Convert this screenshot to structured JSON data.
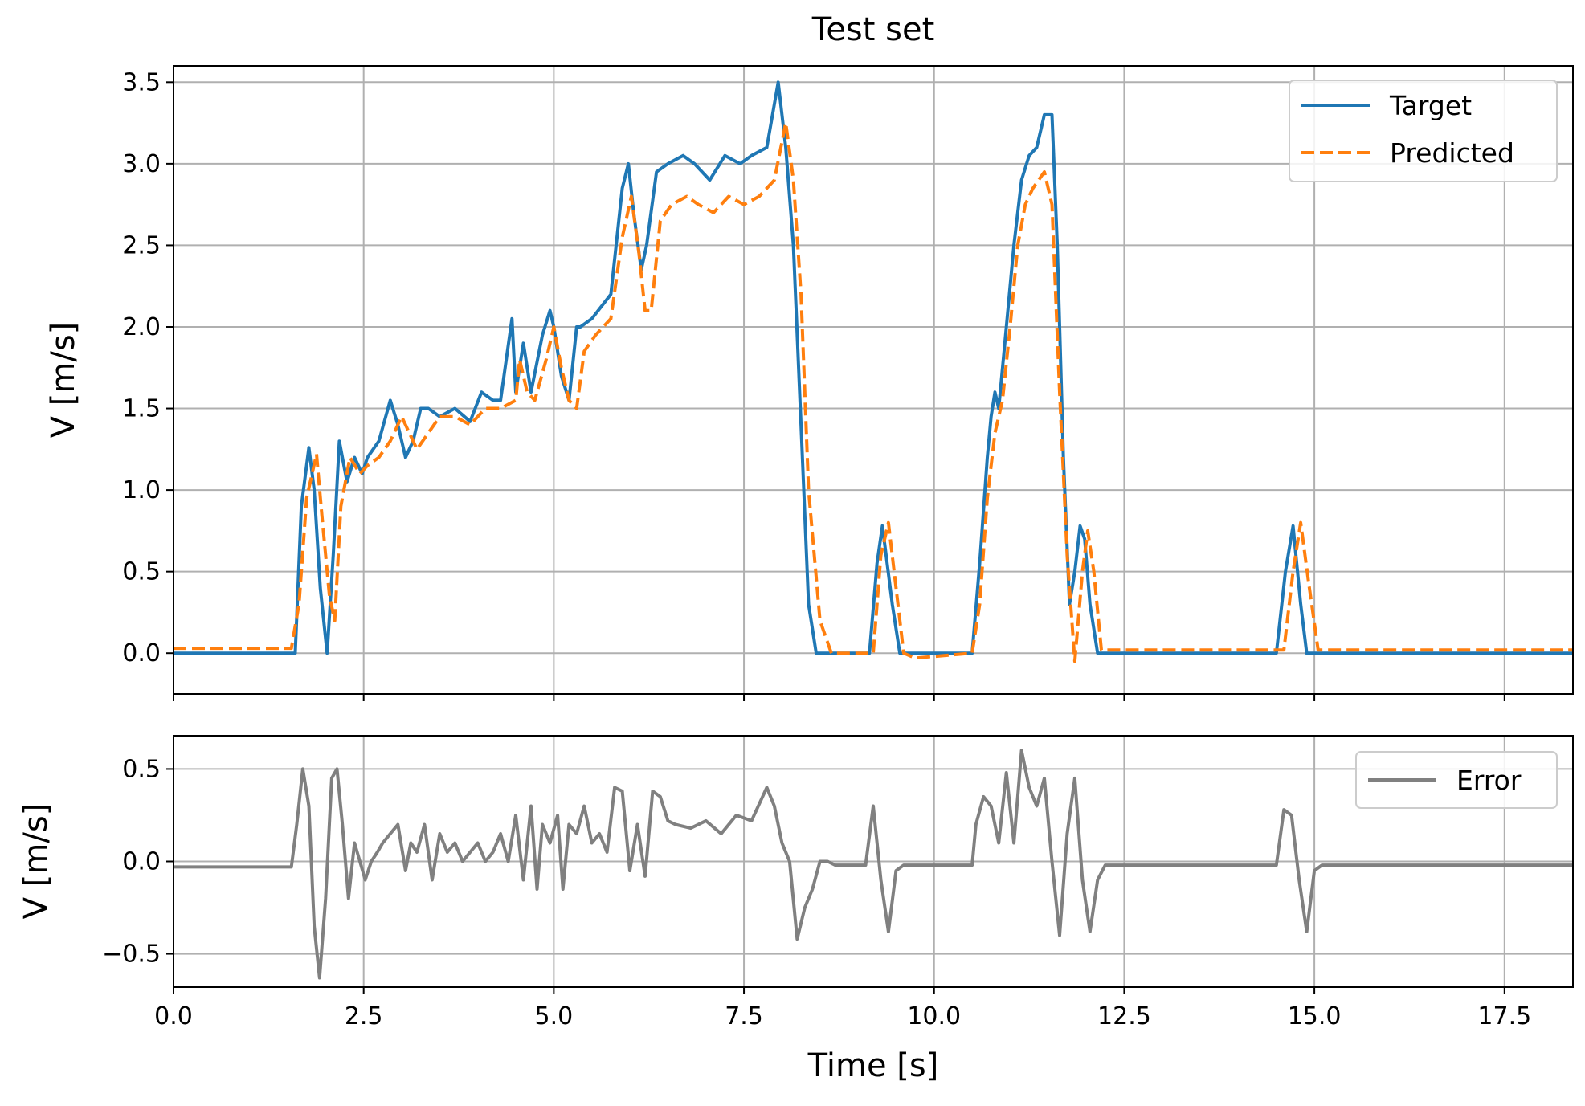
{
  "figure": {
    "title": "Test set"
  },
  "chart_data": [
    {
      "type": "line",
      "title": "Test set",
      "xlabel": "",
      "ylabel": "V [m/s]",
      "xlim": [
        0,
        18.4
      ],
      "ylim": [
        -0.25,
        3.6
      ],
      "grid": true,
      "legend_position": "top-right",
      "yticks": [
        "0.0",
        "0.5",
        "1.0",
        "1.5",
        "2.0",
        "2.5",
        "3.0",
        "3.5"
      ],
      "ytick_values": [
        0,
        0.5,
        1.0,
        1.5,
        2.0,
        2.5,
        3.0,
        3.5
      ],
      "xtick_values": [
        0,
        2.5,
        5,
        7.5,
        10,
        12.5,
        15,
        17.5
      ],
      "series": [
        {
          "name": "Target",
          "color": "#1f77b4",
          "dash": "solid",
          "x": [
            0,
            1.6,
            1.68,
            1.78,
            1.85,
            1.93,
            2.02,
            2.1,
            2.18,
            2.28,
            2.38,
            2.48,
            2.55,
            2.7,
            2.85,
            2.95,
            3.05,
            3.15,
            3.25,
            3.35,
            3.5,
            3.7,
            3.9,
            4.05,
            4.2,
            4.3,
            4.45,
            4.5,
            4.6,
            4.7,
            4.85,
            4.95,
            5.0,
            5.1,
            5.2,
            5.3,
            5.35,
            5.5,
            5.75,
            5.9,
            5.98,
            6.05,
            6.15,
            6.22,
            6.35,
            6.5,
            6.7,
            6.85,
            7.05,
            7.25,
            7.45,
            7.6,
            7.8,
            7.95,
            8.05,
            8.15,
            8.25,
            8.35,
            8.45,
            9.15,
            9.25,
            9.32,
            9.45,
            9.55,
            10.5,
            10.6,
            10.7,
            10.75,
            10.8,
            10.85,
            10.95,
            11.05,
            11.15,
            11.25,
            11.35,
            11.45,
            11.55,
            11.62,
            11.7,
            11.78,
            11.85,
            11.92,
            11.98,
            12.05,
            12.15,
            14.5,
            14.62,
            14.72,
            14.82,
            14.9,
            18.4
          ],
          "y": [
            0,
            0,
            0.9,
            1.26,
            1.0,
            0.4,
            0.0,
            0.6,
            1.3,
            1.05,
            1.2,
            1.1,
            1.2,
            1.3,
            1.55,
            1.4,
            1.2,
            1.3,
            1.5,
            1.5,
            1.45,
            1.5,
            1.42,
            1.6,
            1.55,
            1.55,
            2.05,
            1.6,
            1.9,
            1.6,
            1.95,
            2.1,
            2.0,
            1.7,
            1.55,
            2.0,
            2.0,
            2.05,
            2.2,
            2.85,
            3.0,
            2.7,
            2.35,
            2.5,
            2.95,
            3.0,
            3.05,
            3.0,
            2.9,
            3.05,
            3.0,
            3.05,
            3.1,
            3.5,
            3.1,
            2.5,
            1.4,
            0.3,
            0.0,
            0.0,
            0.55,
            0.78,
            0.3,
            0.0,
            0.0,
            0.55,
            1.2,
            1.45,
            1.6,
            1.5,
            2.0,
            2.5,
            2.9,
            3.05,
            3.1,
            3.3,
            3.3,
            2.5,
            1.2,
            0.3,
            0.5,
            0.78,
            0.7,
            0.3,
            0.0,
            0.0,
            0.5,
            0.78,
            0.3,
            0.0,
            0.0
          ]
        },
        {
          "name": "Predicted",
          "color": "#ff7f0e",
          "dash": "dashed",
          "x": [
            0,
            1.55,
            1.65,
            1.75,
            1.88,
            1.95,
            2.05,
            2.12,
            2.2,
            2.32,
            2.45,
            2.55,
            2.7,
            2.85,
            3.0,
            3.1,
            3.2,
            3.35,
            3.5,
            3.7,
            3.9,
            4.1,
            4.3,
            4.5,
            4.55,
            4.65,
            4.75,
            4.9,
            5.0,
            5.1,
            5.2,
            5.3,
            5.4,
            5.55,
            5.75,
            5.9,
            6.02,
            6.12,
            6.2,
            6.28,
            6.4,
            6.55,
            6.75,
            6.9,
            7.1,
            7.3,
            7.5,
            7.7,
            7.9,
            8.05,
            8.15,
            8.25,
            8.35,
            8.5,
            8.65,
            9.2,
            9.3,
            9.4,
            9.5,
            9.6,
            9.75,
            10.5,
            10.6,
            10.7,
            10.8,
            10.9,
            11.0,
            11.1,
            11.2,
            11.3,
            11.45,
            11.55,
            11.65,
            11.75,
            11.85,
            11.95,
            12.02,
            12.1,
            12.2,
            14.6,
            14.72,
            14.82,
            14.92,
            15.05,
            18.4
          ],
          "y": [
            0.03,
            0.03,
            0.3,
            0.95,
            1.22,
            0.85,
            0.35,
            0.2,
            0.9,
            1.2,
            1.1,
            1.15,
            1.2,
            1.3,
            1.45,
            1.35,
            1.25,
            1.35,
            1.45,
            1.45,
            1.4,
            1.5,
            1.5,
            1.55,
            1.8,
            1.6,
            1.55,
            1.8,
            2.0,
            1.75,
            1.55,
            1.5,
            1.85,
            1.95,
            2.05,
            2.55,
            2.8,
            2.45,
            2.1,
            2.1,
            2.65,
            2.75,
            2.8,
            2.75,
            2.7,
            2.8,
            2.75,
            2.8,
            2.9,
            3.25,
            2.9,
            2.2,
            1.0,
            0.2,
            0.0,
            0.0,
            0.6,
            0.8,
            0.4,
            0.0,
            -0.03,
            0.0,
            0.3,
            0.95,
            1.35,
            1.55,
            2.0,
            2.5,
            2.75,
            2.85,
            2.95,
            2.75,
            1.6,
            0.6,
            -0.05,
            0.5,
            0.75,
            0.5,
            0.02,
            0.02,
            0.5,
            0.8,
            0.45,
            0.02,
            0.02
          ]
        }
      ]
    },
    {
      "type": "line",
      "title": "",
      "xlabel": "Time [s]",
      "ylabel": "V [m/s]",
      "xlim": [
        0,
        18.4
      ],
      "ylim": [
        -0.68,
        0.68
      ],
      "grid": true,
      "legend_position": "top-right",
      "yticks": [
        "0.5",
        "0.0",
        "−0.5"
      ],
      "ytick_values": [
        0.5,
        0.0,
        -0.5
      ],
      "xticks": [
        "0.0",
        "2.5",
        "5.0",
        "7.5",
        "10.0",
        "12.5",
        "15.0",
        "17.5"
      ],
      "xtick_values": [
        0,
        2.5,
        5,
        7.5,
        10,
        12.5,
        15,
        17.5
      ],
      "series": [
        {
          "name": "Error",
          "color": "#808080",
          "dash": "solid",
          "x": [
            0,
            1.55,
            1.62,
            1.7,
            1.78,
            1.85,
            1.92,
            2.0,
            2.08,
            2.15,
            2.22,
            2.3,
            2.38,
            2.45,
            2.52,
            2.6,
            2.68,
            2.75,
            2.85,
            2.95,
            3.05,
            3.12,
            3.2,
            3.3,
            3.4,
            3.5,
            3.6,
            3.7,
            3.8,
            3.9,
            4.0,
            4.1,
            4.2,
            4.3,
            4.4,
            4.5,
            4.6,
            4.7,
            4.78,
            4.85,
            4.95,
            5.05,
            5.12,
            5.2,
            5.3,
            5.4,
            5.5,
            5.6,
            5.7,
            5.8,
            5.9,
            6.0,
            6.1,
            6.2,
            6.3,
            6.4,
            6.5,
            6.6,
            6.8,
            7.0,
            7.2,
            7.4,
            7.6,
            7.8,
            7.9,
            8.0,
            8.1,
            8.2,
            8.3,
            8.4,
            8.5,
            8.6,
            8.7,
            9.1,
            9.2,
            9.3,
            9.4,
            9.5,
            9.6,
            9.7,
            10.5,
            10.55,
            10.65,
            10.75,
            10.85,
            10.95,
            11.05,
            11.15,
            11.25,
            11.35,
            11.45,
            11.55,
            11.65,
            11.75,
            11.85,
            11.95,
            12.05,
            12.15,
            12.25,
            14.5,
            14.6,
            14.7,
            14.8,
            14.9,
            15.0,
            15.1,
            18.4
          ],
          "y": [
            -0.03,
            -0.03,
            0.2,
            0.5,
            0.3,
            -0.35,
            -0.63,
            -0.2,
            0.45,
            0.5,
            0.2,
            -0.2,
            0.1,
            0.0,
            -0.1,
            0.0,
            0.05,
            0.1,
            0.15,
            0.2,
            -0.05,
            0.1,
            0.05,
            0.2,
            -0.1,
            0.15,
            0.05,
            0.1,
            0.0,
            0.05,
            0.1,
            0.0,
            0.05,
            0.15,
            0.0,
            0.25,
            -0.1,
            0.3,
            -0.15,
            0.2,
            0.1,
            0.25,
            -0.15,
            0.2,
            0.15,
            0.3,
            0.1,
            0.15,
            0.05,
            0.4,
            0.38,
            -0.05,
            0.2,
            -0.08,
            0.38,
            0.35,
            0.22,
            0.2,
            0.18,
            0.22,
            0.15,
            0.25,
            0.22,
            0.4,
            0.3,
            0.1,
            0.0,
            -0.42,
            -0.25,
            -0.15,
            0.0,
            0.0,
            -0.02,
            -0.02,
            0.3,
            -0.1,
            -0.38,
            -0.05,
            -0.02,
            -0.02,
            -0.02,
            0.2,
            0.35,
            0.3,
            0.1,
            0.48,
            0.1,
            0.6,
            0.4,
            0.3,
            0.45,
            0.0,
            -0.4,
            0.15,
            0.45,
            -0.1,
            -0.38,
            -0.1,
            -0.02,
            -0.02,
            0.28,
            0.25,
            -0.1,
            -0.38,
            -0.05,
            -0.02,
            -0.02
          ]
        }
      ]
    }
  ]
}
